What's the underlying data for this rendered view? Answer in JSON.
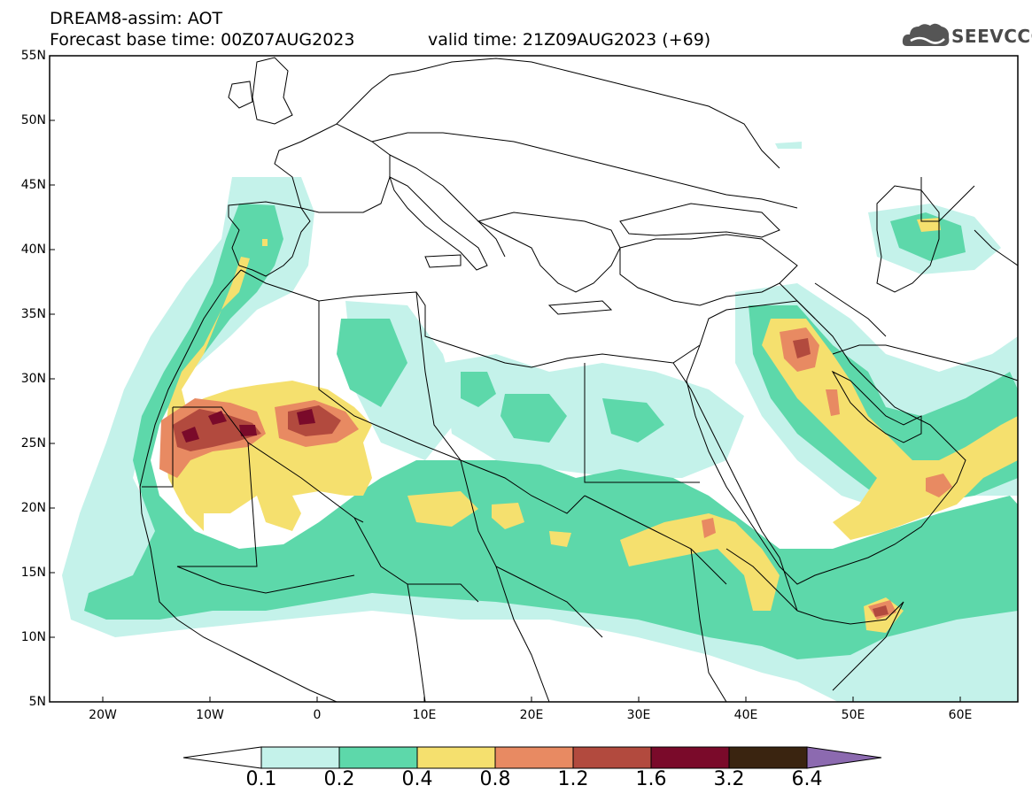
{
  "header": {
    "line1": "DREAM8-assim: AOT",
    "line2_base": "Forecast base time: 00Z07AUG2023",
    "line2_valid": "valid time: 21Z09AUG2023 (+69)"
  },
  "logo": {
    "text": "SEEVCCC",
    "icon": "cloud-icon"
  },
  "map": {
    "lat_labels": [
      "55N",
      "50N",
      "45N",
      "40N",
      "35N",
      "30N",
      "25N",
      "20N",
      "15N",
      "10N",
      "5N"
    ],
    "lon_labels": [
      "20W",
      "10W",
      "0",
      "10E",
      "20E",
      "30E",
      "40E",
      "50E",
      "60E"
    ]
  },
  "colorbar": {
    "labels": [
      "0.1",
      "0.2",
      "0.4",
      "0.8",
      "1.2",
      "1.6",
      "3.2",
      "6.4"
    ],
    "colors": [
      "#c4f2ea",
      "#5dd8aa",
      "#f5e06e",
      "#e88a62",
      "#b24a3e",
      "#7a0a2a",
      "#3a2410",
      "#8c6ab0"
    ]
  }
}
